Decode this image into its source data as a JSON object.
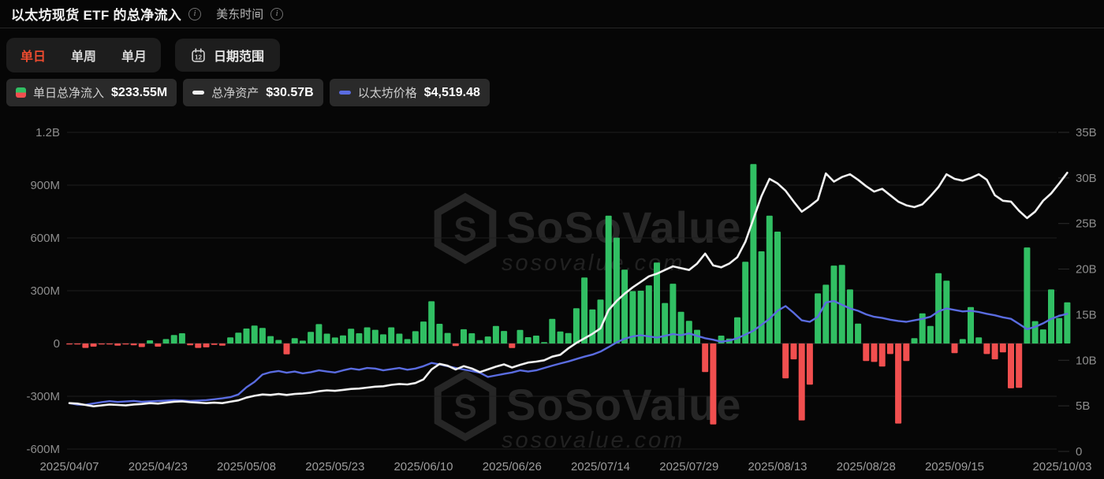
{
  "header": {
    "title": "以太坊现货 ETF 的总净流入",
    "timezone_label": "美东时间"
  },
  "toolbar": {
    "tabs": [
      {
        "label": "单日",
        "active": true
      },
      {
        "label": "单周",
        "active": false
      },
      {
        "label": "单月",
        "active": false
      }
    ],
    "date_range_label": "日期范围",
    "calendar_icon_day": "12",
    "active_tab_color": "#ec4b2f"
  },
  "legend": [
    {
      "type": "bar-split",
      "label": "单日总净流入",
      "value": "$233.55M",
      "colors": [
        "#31bf63",
        "#f14f4f"
      ]
    },
    {
      "type": "line",
      "label": "总净资产",
      "value": "$30.57B",
      "color": "#f2f2f2"
    },
    {
      "type": "line",
      "label": "以太坊价格",
      "value": "$4,519.48",
      "color": "#5a6ce0"
    }
  ],
  "watermark": {
    "brand": "SoSoValue",
    "domain": "sosovalue.com"
  },
  "chart_data": {
    "type": "combo",
    "title": "以太坊现货 ETF 的总净流入",
    "grid": true,
    "legend_position": "top-left",
    "left_axis": {
      "ticks": [
        "1.2B",
        "900M",
        "600M",
        "300M",
        "0",
        "-300M",
        "-600M"
      ],
      "tick_values_m": [
        1200,
        900,
        600,
        300,
        0,
        -300,
        -600
      ],
      "range_m": [
        -600,
        1200
      ]
    },
    "right_axis": {
      "ticks": [
        "35B",
        "30B",
        "25B",
        "20B",
        "15B",
        "10B",
        "5B",
        "0"
      ],
      "tick_values_b": [
        35,
        30,
        25,
        20,
        15,
        10,
        5,
        0
      ],
      "range_b": [
        0,
        35
      ]
    },
    "x_tick_dates": [
      "2025/04/07",
      "2025/04/23",
      "2025/05/08",
      "2025/05/23",
      "2025/06/10",
      "2025/06/26",
      "2025/07/14",
      "2025/07/29",
      "2025/08/13",
      "2025/08/28",
      "2025/09/15",
      "2025/10/03"
    ],
    "dates": [
      "2025/04/07",
      "2025/04/08",
      "2025/04/09",
      "2025/04/10",
      "2025/04/11",
      "2025/04/14",
      "2025/04/15",
      "2025/04/16",
      "2025/04/17",
      "2025/04/21",
      "2025/04/22",
      "2025/04/23",
      "2025/04/24",
      "2025/04/25",
      "2025/04/28",
      "2025/04/29",
      "2025/04/30",
      "2025/05/01",
      "2025/05/02",
      "2025/05/05",
      "2025/05/06",
      "2025/05/07",
      "2025/05/08",
      "2025/05/09",
      "2025/05/12",
      "2025/05/13",
      "2025/05/14",
      "2025/05/15",
      "2025/05/16",
      "2025/05/19",
      "2025/05/20",
      "2025/05/21",
      "2025/05/22",
      "2025/05/23",
      "2025/05/27",
      "2025/05/28",
      "2025/05/29",
      "2025/05/30",
      "2025/06/02",
      "2025/06/03",
      "2025/06/04",
      "2025/06/05",
      "2025/06/06",
      "2025/06/09",
      "2025/06/10",
      "2025/06/11",
      "2025/06/12",
      "2025/06/13",
      "2025/06/16",
      "2025/06/17",
      "2025/06/18",
      "2025/06/20",
      "2025/06/23",
      "2025/06/24",
      "2025/06/25",
      "2025/06/26",
      "2025/06/27",
      "2025/06/30",
      "2025/07/01",
      "2025/07/02",
      "2025/07/03",
      "2025/07/07",
      "2025/07/08",
      "2025/07/09",
      "2025/07/10",
      "2025/07/11",
      "2025/07/14",
      "2025/07/15",
      "2025/07/16",
      "2025/07/17",
      "2025/07/18",
      "2025/07/21",
      "2025/07/22",
      "2025/07/23",
      "2025/07/24",
      "2025/07/25",
      "2025/07/28",
      "2025/07/29",
      "2025/07/30",
      "2025/07/31",
      "2025/08/01",
      "2025/08/04",
      "2025/08/05",
      "2025/08/06",
      "2025/08/07",
      "2025/08/08",
      "2025/08/11",
      "2025/08/12",
      "2025/08/13",
      "2025/08/14",
      "2025/08/15",
      "2025/08/18",
      "2025/08/19",
      "2025/08/20",
      "2025/08/21",
      "2025/08/22",
      "2025/08/25",
      "2025/08/26",
      "2025/08/27",
      "2025/08/28",
      "2025/08/29",
      "2025/09/02",
      "2025/09/03",
      "2025/09/04",
      "2025/09/05",
      "2025/09/08",
      "2025/09/09",
      "2025/09/10",
      "2025/09/11",
      "2025/09/12",
      "2025/09/15",
      "2025/09/16",
      "2025/09/17",
      "2025/09/18",
      "2025/09/19",
      "2025/09/22",
      "2025/09/23",
      "2025/09/24",
      "2025/09/25",
      "2025/09/26",
      "2025/09/29",
      "2025/09/30",
      "2025/10/01",
      "2025/10/02",
      "2025/10/03"
    ],
    "series": [
      {
        "name": "单日总净流入",
        "type": "bar",
        "axis": "left",
        "unit": "M USD",
        "positive_color": "#31bf63",
        "negative_color": "#f14f4f",
        "latest_label": "$233.55M",
        "values": [
          -4,
          -3,
          -25,
          -18,
          -5,
          -3,
          -12,
          -6,
          -10,
          -20,
          18,
          -18,
          25,
          48,
          58,
          -10,
          -25,
          -22,
          -8,
          -12,
          35,
          62,
          85,
          102,
          88,
          42,
          20,
          -62,
          30,
          16,
          66,
          110,
          56,
          34,
          46,
          84,
          58,
          92,
          78,
          52,
          92,
          56,
          25,
          70,
          125,
          240,
          112,
          60,
          -15,
          81,
          58,
          19,
          40,
          100,
          71,
          -26,
          77,
          36,
          45,
          8,
          140,
          68,
          59,
          200,
          375,
          194,
          250,
          727,
          602,
          420,
          298,
          300,
          330,
          460,
          230,
          340,
          180,
          129,
          78,
          -162,
          -460,
          45,
          28,
          149,
          465,
          1020,
          524,
          727,
          636,
          -198,
          -90,
          -437,
          -234,
          285,
          334,
          443,
          447,
          307,
          113,
          -100,
          -105,
          -131,
          -60,
          -455,
          -100,
          30,
          171,
          100,
          400,
          357,
          -55,
          25,
          207,
          35,
          -60,
          -90,
          -50,
          -255,
          -252,
          546,
          127,
          80,
          307,
          145,
          233.55
        ]
      },
      {
        "name": "总净资产",
        "type": "line",
        "axis": "right",
        "unit": "B USD",
        "color": "#f2f2f2",
        "latest_label": "$30.57B",
        "values": [
          5.3,
          5.25,
          5.1,
          4.95,
          5.05,
          5.15,
          5.1,
          5.05,
          5.15,
          5.2,
          5.3,
          5.25,
          5.35,
          5.45,
          5.5,
          5.4,
          5.35,
          5.3,
          5.35,
          5.3,
          5.45,
          5.6,
          5.9,
          6.1,
          6.25,
          6.2,
          6.3,
          6.2,
          6.3,
          6.35,
          6.45,
          6.6,
          6.7,
          6.65,
          6.75,
          6.85,
          6.9,
          7.0,
          7.1,
          7.15,
          7.3,
          7.4,
          7.35,
          7.5,
          7.9,
          9.0,
          9.6,
          9.4,
          9.0,
          9.35,
          9.1,
          8.7,
          9.0,
          9.3,
          9.55,
          9.2,
          9.5,
          9.75,
          9.85,
          10.0,
          10.4,
          10.6,
          11.3,
          11.9,
          12.4,
          12.9,
          13.5,
          15.5,
          16.5,
          17.3,
          18.0,
          18.6,
          19.2,
          19.5,
          19.9,
          20.3,
          20.1,
          19.9,
          20.6,
          21.7,
          20.4,
          20.2,
          20.6,
          21.3,
          23.0,
          25.5,
          28.0,
          29.9,
          29.4,
          28.6,
          27.4,
          26.3,
          26.9,
          27.6,
          30.5,
          29.6,
          30.1,
          30.4,
          29.8,
          29.1,
          28.5,
          28.8,
          28.1,
          27.4,
          27.0,
          26.8,
          27.1,
          28.0,
          29.0,
          30.4,
          29.9,
          29.7,
          30.0,
          30.4,
          29.8,
          28.1,
          27.5,
          27.4,
          26.4,
          25.6,
          26.3,
          27.5,
          28.3,
          29.4,
          30.57
        ]
      },
      {
        "name": "以太坊价格",
        "type": "line",
        "axis": "hidden-price",
        "unit": "USD",
        "color": "#5a6ce0",
        "latest_label": "$4,519.48",
        "values": [
          1520,
          1470,
          1465,
          1510,
          1555,
          1585,
          1560,
          1575,
          1590,
          1565,
          1580,
          1590,
          1605,
          1620,
          1610,
          1590,
          1605,
          1620,
          1650,
          1680,
          1720,
          1810,
          2050,
          2230,
          2480,
          2560,
          2600,
          2540,
          2580,
          2520,
          2560,
          2620,
          2580,
          2550,
          2620,
          2680,
          2640,
          2700,
          2680,
          2620,
          2660,
          2700,
          2640,
          2680,
          2760,
          2870,
          2820,
          2760,
          2700,
          2650,
          2600,
          2540,
          2400,
          2450,
          2500,
          2550,
          2620,
          2580,
          2620,
          2700,
          2780,
          2850,
          2920,
          3000,
          3080,
          3150,
          3250,
          3400,
          3560,
          3680,
          3760,
          3800,
          3760,
          3720,
          3780,
          3840,
          3800,
          3860,
          3780,
          3700,
          3650,
          3580,
          3620,
          3700,
          3820,
          3950,
          4150,
          4350,
          4620,
          4780,
          4550,
          4300,
          4250,
          4420,
          4900,
          4950,
          4820,
          4700,
          4620,
          4500,
          4420,
          4380,
          4320,
          4280,
          4250,
          4300,
          4350,
          4420,
          4600,
          4700,
          4650,
          4600,
          4620,
          4580,
          4520,
          4470,
          4400,
          4350,
          4180,
          4000,
          4080,
          4200,
          4350,
          4450,
          4519.48
        ]
      }
    ]
  }
}
